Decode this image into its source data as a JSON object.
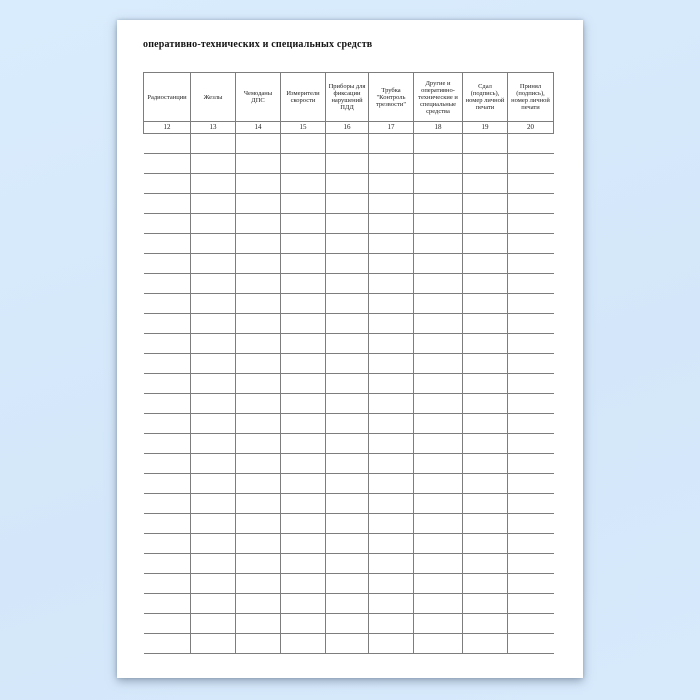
{
  "document": {
    "title": "оперативно-технических и специальных средств"
  },
  "table": {
    "columns": [
      {
        "label": "Радиостанции",
        "number": "12"
      },
      {
        "label": "Жезлы",
        "number": "13"
      },
      {
        "label": "Чемоданы ДПС",
        "number": "14"
      },
      {
        "label": "Измерители скорости",
        "number": "15"
      },
      {
        "label": "Приборы для фиксации нарушений ПДД",
        "number": "16"
      },
      {
        "label": "Трубка \"Контроль трезвости\"",
        "number": "17"
      },
      {
        "label": "Другие и оперативно-технические и специальные средства",
        "number": "18"
      },
      {
        "label": "Сдал (подпись), номер личной печати",
        "number": "19"
      },
      {
        "label": "Принял (подпись), номер личной печати",
        "number": "20"
      }
    ],
    "body_row_count": 26,
    "cells_empty": true
  },
  "colors": {
    "canvas_background": "#d6e9fb",
    "page_background": "#ffffff",
    "table_border": "#7d7d7d",
    "text": "#1b1b1b"
  }
}
